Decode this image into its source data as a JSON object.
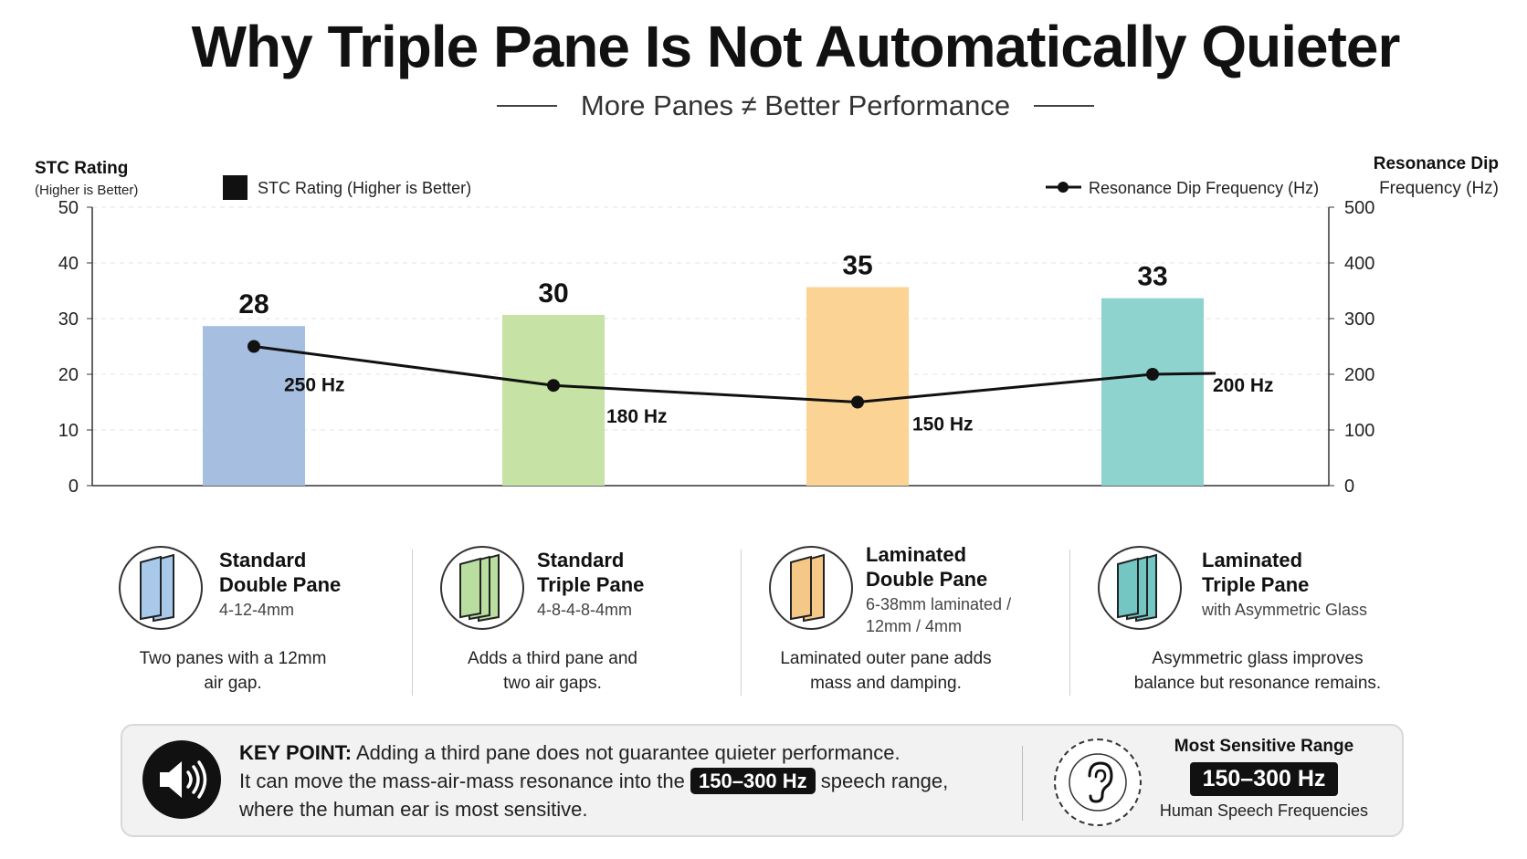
{
  "title": "Why Triple Pane Is Not Automatically Quieter",
  "subtitle": "More Panes ≠ Better Performance",
  "chart_data": {
    "type": "bar",
    "categories": [
      "Standard Double Pane",
      "Standard Triple Pane",
      "Laminated Double Pane",
      "Laminated Triple Pane"
    ],
    "left_axis": {
      "label_line1": "STC Rating",
      "label_line2": "(Higher is Better)",
      "ylim": [
        0,
        50
      ],
      "ticks": [
        "0",
        "10",
        "20",
        "30",
        "40",
        "50"
      ]
    },
    "right_axis": {
      "label_line1": "Resonance Dip",
      "label_line2": "Frequency (Hz)",
      "ylim": [
        0,
        500
      ],
      "ticks": [
        "0",
        "100",
        "200",
        "300",
        "400",
        "500"
      ]
    },
    "legend": {
      "bars": "STC Rating (Higher is Better)",
      "line": "Resonance Dip Frequency (Hz)"
    },
    "series": [
      {
        "name": "STC Rating (Higher is Better)",
        "kind": "bar",
        "axis": "left",
        "values": [
          28,
          30,
          35,
          33
        ],
        "labels": [
          "28",
          "30",
          "35",
          "33"
        ],
        "colors": [
          "#a6bedf",
          "#c6e3a5",
          "#fbd394",
          "#8fd3cf"
        ]
      },
      {
        "name": "Resonance Dip Frequency (Hz)",
        "kind": "line",
        "axis": "right",
        "values": [
          250,
          180,
          150,
          200
        ],
        "labels": [
          "250 Hz",
          "180 Hz",
          "150 Hz",
          "200 Hz"
        ],
        "color": "#111111"
      }
    ],
    "grid": "horizontal dashed"
  },
  "cards": [
    {
      "name1": "Standard",
      "name2": "Double Pane",
      "spec1": "4-12-4mm",
      "spec2": "",
      "desc1": "Two panes with a 12mm",
      "desc2": "air gap.",
      "icon": "double-pane-window-icon",
      "color": "#a9c9ea",
      "panes": 2
    },
    {
      "name1": "Standard",
      "name2": "Triple Pane",
      "spec1": "4-8-4-8-4mm",
      "spec2": "",
      "desc1": "Adds a third pane and",
      "desc2": "two air gaps.",
      "icon": "triple-pane-window-icon",
      "color": "#b9dea0",
      "panes": 3
    },
    {
      "name1": "Laminated",
      "name2": "Double Pane",
      "spec1": "6-38mm laminated /",
      "spec2": "12mm / 4mm",
      "desc1": "Laminated outer pane adds",
      "desc2": "mass and damping.",
      "icon": "laminated-double-pane-icon",
      "color": "#f6c887",
      "panes": 2
    },
    {
      "name1": "Laminated",
      "name2": "Triple Pane",
      "spec1": "with Asymmetric Glass",
      "spec2": "",
      "desc1": "Asymmetric glass improves",
      "desc2": "balance but resonance remains.",
      "icon": "laminated-triple-pane-icon",
      "color": "#74c6c3",
      "panes": 3
    }
  ],
  "key_point": {
    "label": "KEY POINT:",
    "line1": "Adding a third pane does not guarantee quieter performance.",
    "line2_before": "It can move the mass-air-mass resonance into the",
    "line2_highlight": "150–300 Hz",
    "line2_after": "speech range,",
    "line3": "where the human ear is most sensitive.",
    "icon": "speaker-icon"
  },
  "sensitive": {
    "title": "Most Sensitive Range",
    "range": "150–300 Hz",
    "subtitle": "Human Speech Frequencies",
    "icon": "ear-icon"
  }
}
